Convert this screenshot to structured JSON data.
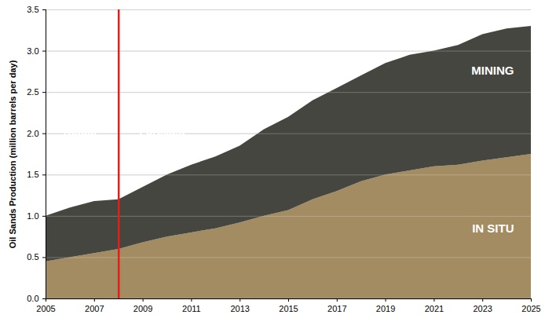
{
  "chart_data": {
    "type": "area",
    "stacked": true,
    "y_label": "Oil Sands Production (million barrels per day)",
    "x": [
      2005,
      2006,
      2007,
      2008,
      2009,
      2010,
      2011,
      2012,
      2013,
      2014,
      2015,
      2016,
      2017,
      2018,
      2019,
      2020,
      2021,
      2022,
      2023,
      2024,
      2025
    ],
    "series": [
      {
        "name": "IN SITU",
        "color": "#a38b62",
        "values": [
          0.45,
          0.5,
          0.55,
          0.6,
          0.68,
          0.75,
          0.8,
          0.85,
          0.92,
          1.0,
          1.07,
          1.2,
          1.3,
          1.42,
          1.5,
          1.55,
          1.6,
          1.62,
          1.67,
          1.71,
          1.75
        ]
      },
      {
        "name": "MINING",
        "color": "#45463f",
        "values": [
          0.55,
          0.6,
          0.63,
          0.6,
          0.67,
          0.75,
          0.82,
          0.87,
          0.93,
          1.05,
          1.13,
          1.2,
          1.25,
          1.28,
          1.35,
          1.4,
          1.4,
          1.45,
          1.53,
          1.56,
          1.55
        ]
      }
    ],
    "forecast_start": 2008,
    "annotations": [
      "Actual",
      "Forecast"
    ],
    "xlim": [
      2005,
      2025
    ],
    "xticks": [
      2005,
      2007,
      2009,
      2011,
      2013,
      2015,
      2017,
      2019,
      2021,
      2023,
      2025
    ],
    "ylim": [
      0,
      3.5
    ],
    "yticks": [
      {
        "value": 0,
        "label": "0.0"
      },
      {
        "value": 0.5,
        "label": "0.5"
      },
      {
        "value": 1,
        "label": "1.0"
      },
      {
        "value": 1.5,
        "label": "1.5"
      },
      {
        "value": 2,
        "label": "2.0"
      },
      {
        "value": 2.5,
        "label": "2.5"
      },
      {
        "value": 3,
        "label": "3.0"
      },
      {
        "value": 3.5,
        "label": "3.5"
      }
    ],
    "grid": true
  }
}
